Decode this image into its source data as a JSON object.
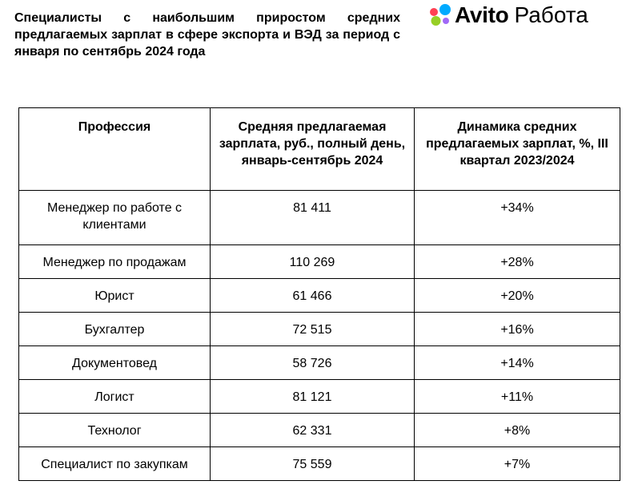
{
  "title": "Специалисты с наибольшим приростом средних предлагаемых зарплат в сфере экспорта и ВЭД за период с января по сентябрь 2024 года",
  "logo": {
    "brand": "Avito",
    "product": "Работа",
    "dot_colors": [
      "#00aaff",
      "#ff4053",
      "#97cf26",
      "#a169f7"
    ]
  },
  "table": {
    "headers": [
      "Профессия",
      "Средняя предлагаемая зарплата, руб., полный день, январь-сентябрь 2024",
      "Динамика средних предлагаемых зарплат, %, III квартал 2023/2024"
    ],
    "rows": [
      {
        "profession": "Менеджер по работе с клиентами",
        "salary": "81 411",
        "change": "+34%"
      },
      {
        "profession": "Менеджер по продажам",
        "salary": "110 269",
        "change": "+28%"
      },
      {
        "profession": "Юрист",
        "salary": "61 466",
        "change": "+20%"
      },
      {
        "profession": "Бухгалтер",
        "salary": "72 515",
        "change": "+16%"
      },
      {
        "profession": "Документовед",
        "salary": "58 726",
        "change": "+14%"
      },
      {
        "profession": "Логист",
        "salary": "81 121",
        "change": "+11%"
      },
      {
        "profession": "Технолог",
        "salary": "62 331",
        "change": "+8%"
      },
      {
        "profession": "Специалист по закупкам",
        "salary": "75 559",
        "change": "+7%"
      }
    ]
  }
}
